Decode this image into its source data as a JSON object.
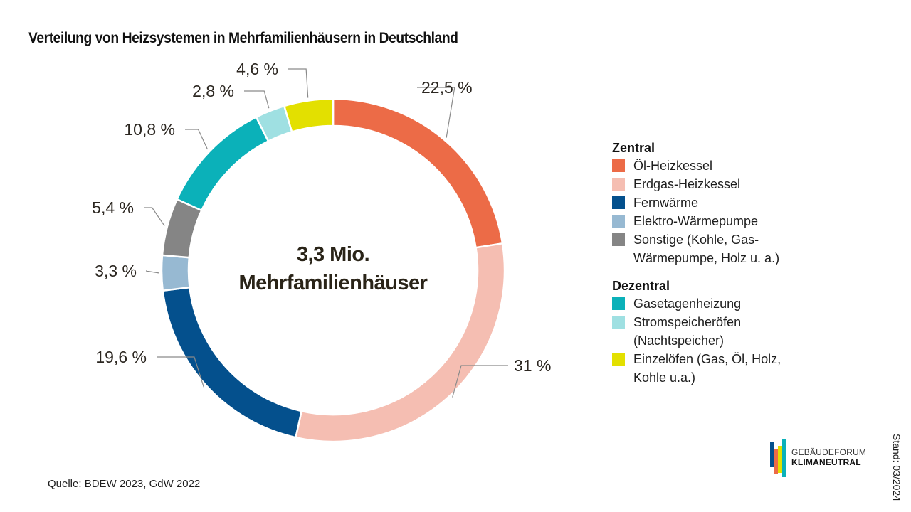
{
  "chart_data": {
    "type": "pie",
    "variant": "donut",
    "title": "Verteilung von Heizsystemen in Mehrfamilienhäusern in Deutschland",
    "center_label": [
      "3,3 Mio.",
      "Mehrfamilienhäuser"
    ],
    "unit": "%",
    "slices": [
      {
        "name": "Öl-Heizkessel",
        "value": 22.5,
        "label": "22,5 %",
        "color": "#ec6b47",
        "group": "Zentral"
      },
      {
        "name": "Erdgas-Heizkessel",
        "value": 31,
        "label": "31 %",
        "color": "#f5beb2",
        "group": "Zentral"
      },
      {
        "name": "Fernwärme",
        "value": 19.6,
        "label": "19,6 %",
        "color": "#04508d",
        "group": "Zentral"
      },
      {
        "name": "Elektro-Wärmepumpe",
        "value": 3.3,
        "label": "3,3 %",
        "color": "#97b9d2",
        "group": "Zentral"
      },
      {
        "name": "Sonstige (Kohle, Gas-Wärmepumpe, Holz u. a.)",
        "value": 5.4,
        "label": "5,4 %",
        "color": "#858585",
        "group": "Zentral"
      },
      {
        "name": "Gasetagenheizung",
        "value": 10.8,
        "label": "10,8 %",
        "color": "#0bb1b9",
        "group": "Dezentral"
      },
      {
        "name": "Stromspeicheröfen (Nachtspeicher)",
        "value": 2.8,
        "label": "2,8 %",
        "color": "#9fe0e2",
        "group": "Dezentral"
      },
      {
        "name": "Einzelöfen (Gas, Öl, Holz, Kohle u.a.)",
        "value": 4.6,
        "label": "4,6 %",
        "color": "#e3e000",
        "group": "Dezentral"
      }
    ],
    "legend_position": "right"
  },
  "legend": {
    "groups": [
      {
        "title": "Zentral",
        "items": [
          {
            "label": "Öl-Heizkessel",
            "color": "#ec6b47"
          },
          {
            "label": "Erdgas-Heizkessel",
            "color": "#f5beb2"
          },
          {
            "label": "Fernwärme",
            "color": "#04508d"
          },
          {
            "label": "Elektro-Wärmepumpe",
            "color": "#97b9d2"
          },
          {
            "label": "Sonstige (Kohle, Gas-Wärmepumpe, Holz u. a.)",
            "color": "#858585"
          }
        ]
      },
      {
        "title": "Dezentral",
        "items": [
          {
            "label": "Gasetagenheizung",
            "color": "#0bb1b9"
          },
          {
            "label": "Stromspeicheröfen (Nachtspeicher)",
            "color": "#9fe0e2"
          },
          {
            "label": "Einzelöfen (Gas, Öl, Holz, Kohle u.a.)",
            "color": "#e3e000"
          }
        ]
      }
    ]
  },
  "footer": {
    "source": "Quelle: BDEW 2023, GdW 2022",
    "stand": "Stand: 03/2024"
  },
  "logo": {
    "line1": "GEBÄUDEFORUM",
    "line2": "KLIMANEUTRAL",
    "bar_colors": [
      "#04508d",
      "#ec6b47",
      "#e3e000",
      "#0bb1b9"
    ]
  }
}
